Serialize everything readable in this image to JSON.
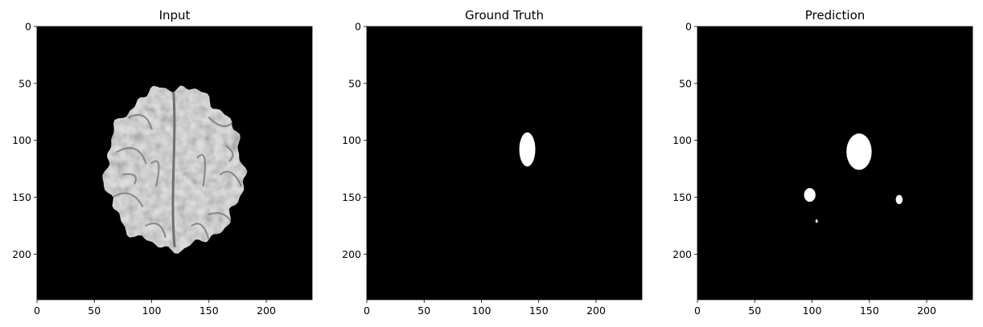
{
  "figure": {
    "background": "#ffffff",
    "image_background": "#000000",
    "mask_color": "#ffffff",
    "axis_range": [
      0,
      240
    ],
    "x_ticks": [
      0,
      50,
      100,
      150,
      200
    ],
    "y_ticks": [
      0,
      50,
      100,
      150,
      200
    ],
    "panels": [
      {
        "title": "Input",
        "content": "grayscale axial brain MRI slice",
        "brain_region": {
          "x_range": [
            60,
            180
          ],
          "y_range": [
            53,
            195
          ]
        }
      },
      {
        "title": "Ground Truth",
        "content": "binary mask",
        "blobs": [
          {
            "cx": 140,
            "cy": 108,
            "rx": 7,
            "ry": 15
          }
        ]
      },
      {
        "title": "Prediction",
        "content": "binary mask",
        "blobs": [
          {
            "cx": 141,
            "cy": 110,
            "rx": 11,
            "ry": 16
          },
          {
            "cx": 98,
            "cy": 148,
            "rx": 5,
            "ry": 6
          },
          {
            "cx": 176,
            "cy": 152,
            "rx": 3,
            "ry": 4
          },
          {
            "cx": 104,
            "cy": 171,
            "rx": 1,
            "ry": 1.5
          }
        ]
      }
    ]
  }
}
